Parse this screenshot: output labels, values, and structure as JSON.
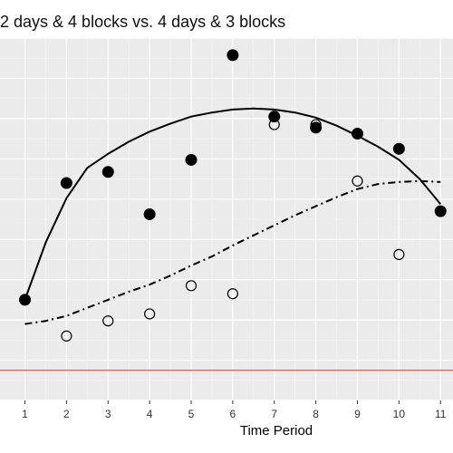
{
  "chart_data": {
    "type": "scatter",
    "title": "2 days & 4 blocks vs. 4 days & 3 blocks",
    "xlabel": "Time Period",
    "ylabel": "",
    "x_ticks": [
      "1",
      "2",
      "3",
      "4",
      "5",
      "6",
      "7",
      "8",
      "9",
      "10",
      "11"
    ],
    "xlim": [
      0.4,
      11.3
    ],
    "ylim": [
      0,
      36
    ],
    "grid": true,
    "legend": "none",
    "reference_line": {
      "y": 3,
      "color": "#e8453c"
    },
    "series": [
      {
        "marker": "filled-circle",
        "color": "#000000",
        "x": [
          1,
          2,
          3,
          4,
          5,
          6,
          7,
          8,
          9,
          10,
          11
        ],
        "y": [
          10.0,
          21.6,
          22.7,
          18.5,
          23.9,
          34.3,
          28.2,
          27.1,
          26.5,
          25.0,
          18.8
        ]
      },
      {
        "marker": "open-circle",
        "color": "#000000",
        "x": [
          2,
          3,
          4,
          5,
          6,
          7,
          8,
          9,
          10
        ],
        "y": [
          6.4,
          7.9,
          8.6,
          11.4,
          10.6,
          27.4,
          27.4,
          21.8,
          14.5
        ]
      }
    ],
    "fit_lines": [
      {
        "style": "solid",
        "x": [
          1,
          1.5,
          2,
          2.5,
          3,
          3.5,
          4,
          4.5,
          5,
          5.5,
          6,
          6.5,
          7,
          7.5,
          8,
          8.5,
          9,
          9.5,
          10,
          10.5,
          11
        ],
        "y": [
          10.0,
          15.7,
          20.1,
          23.1,
          24.5,
          25.7,
          26.7,
          27.5,
          28.2,
          28.6,
          28.9,
          29.0,
          28.9,
          28.6,
          28.1,
          27.3,
          26.3,
          25.2,
          23.9,
          22.0,
          19.5
        ]
      },
      {
        "style": "dotdash",
        "x": [
          1,
          1.5,
          2,
          2.5,
          3,
          3.5,
          4,
          4.5,
          5,
          5.5,
          6,
          6.5,
          7,
          7.5,
          8,
          8.5,
          9,
          9.5,
          10,
          10.5,
          11
        ],
        "y": [
          7.6,
          7.9,
          8.4,
          9.2,
          10.0,
          10.8,
          11.5,
          12.4,
          13.4,
          14.3,
          15.4,
          16.4,
          17.4,
          18.4,
          19.3,
          20.2,
          21.0,
          21.5,
          21.7,
          21.8,
          21.7
        ]
      }
    ]
  }
}
